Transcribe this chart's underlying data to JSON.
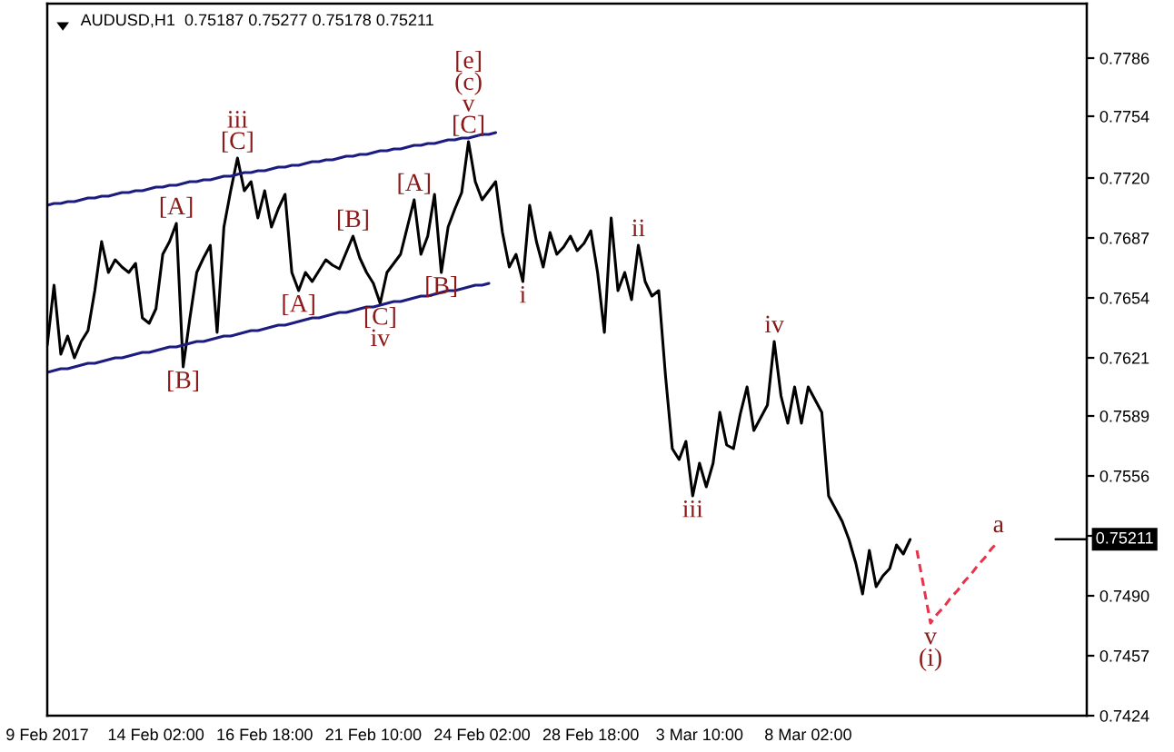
{
  "chart_data": {
    "type": "line",
    "title": "AUDUSD,H1  0.75187 0.75277 0.75178 0.75211",
    "categories": [
      "9 Feb 2017",
      null,
      null,
      null,
      null,
      null,
      null,
      null,
      null,
      null,
      null,
      null,
      null,
      null,
      null,
      null,
      "14 Feb 02:00",
      null,
      null,
      null,
      null,
      null,
      null,
      null,
      null,
      null,
      null,
      null,
      null,
      null,
      null,
      null,
      "16 Feb 18:00",
      null,
      null,
      null,
      null,
      null,
      null,
      null,
      null,
      null,
      null,
      null,
      null,
      null,
      null,
      null,
      "21 Feb 10:00",
      null,
      null,
      null,
      null,
      null,
      null,
      null,
      null,
      null,
      null,
      null,
      null,
      null,
      null,
      null,
      "24 Feb 02:00",
      null,
      null,
      null,
      null,
      null,
      null,
      null,
      null,
      null,
      null,
      null,
      null,
      null,
      null,
      null,
      "28 Feb 18:00",
      null,
      null,
      null,
      null,
      null,
      null,
      null,
      null,
      null,
      null,
      null,
      null,
      null,
      null,
      null,
      "3 Mar 10:00",
      null,
      null,
      null,
      null,
      null,
      null,
      null,
      null,
      null,
      null,
      null,
      null,
      null,
      null,
      null,
      "8 Mar 02:00",
      null,
      null,
      null,
      null,
      null,
      null,
      null,
      null,
      null,
      null,
      null,
      null,
      null,
      null,
      null,
      null,
      null,
      null,
      null,
      null,
      null,
      null,
      null,
      null,
      null,
      null,
      null,
      null,
      null,
      null,
      null,
      null,
      null,
      null,
      null,
      null,
      null,
      null,
      null,
      null,
      null
    ],
    "series": [
      {
        "color": "#000000",
        "values": [
          0.7628,
          0.7661,
          0.7623,
          0.7633,
          0.7621,
          0.763,
          0.7636,
          0.7658,
          0.7685,
          0.7668,
          0.7675,
          0.7671,
          0.7668,
          0.7673,
          0.7643,
          0.764,
          0.7648,
          0.7678,
          0.7685,
          0.7695,
          0.7616,
          0.7643,
          0.7668,
          0.7676,
          0.7683,
          0.7635,
          0.7693,
          0.7713,
          0.7731,
          0.7713,
          0.7718,
          0.7698,
          0.7713,
          0.7693,
          0.7703,
          0.7711,
          0.7668,
          0.7658,
          0.7668,
          0.7663,
          0.7669,
          0.7675,
          0.7672,
          0.767,
          0.7679,
          0.7688,
          0.7676,
          0.7668,
          0.7662,
          0.7651,
          0.7668,
          0.7673,
          0.7678,
          0.7693,
          0.7708,
          0.7678,
          0.7688,
          0.7711,
          0.7668,
          0.7693,
          0.7703,
          0.7712,
          0.774,
          0.7718,
          0.7708,
          0.7713,
          0.7718,
          0.769,
          0.7671,
          0.7678,
          0.7663,
          0.7705,
          0.7685,
          0.7671,
          0.769,
          0.7678,
          0.7682,
          0.7688,
          0.768,
          0.7684,
          0.7691,
          0.7668,
          0.7635,
          0.7698,
          0.7658,
          0.7668,
          0.7653,
          0.7683,
          0.7663,
          0.7655,
          0.7658,
          0.7611,
          0.7571,
          0.7565,
          0.7575,
          0.7545,
          0.7563,
          0.755,
          0.7563,
          0.7591,
          0.7573,
          0.7571,
          0.759,
          0.7605,
          0.7581,
          0.7588,
          0.7595,
          0.763,
          0.76,
          0.7585,
          0.7605,
          0.7585,
          0.7605,
          0.7598,
          0.7591,
          0.7545,
          0.7538,
          0.7531,
          0.7521,
          0.7508,
          0.7491,
          0.7515,
          0.7495,
          0.7501,
          0.7505,
          0.7518,
          0.7513,
          0.7521,
          null,
          null,
          null,
          null,
          null,
          null,
          null,
          null,
          null,
          null,
          null,
          null,
          null,
          null,
          null,
          null,
          null,
          null,
          null,
          null,
          null,
          null,
          null,
          null,
          null,
          null
        ]
      },
      {
        "type": "line",
        "color": "#1c1c80",
        "values": [
          0.7705,
          0.7706,
          0.7706,
          0.7707,
          0.7707,
          0.7708,
          0.7709,
          0.7709,
          0.771,
          0.771,
          0.7711,
          0.7712,
          0.7712,
          0.7713,
          0.7713,
          0.7714,
          0.7715,
          0.7715,
          0.7716,
          0.7716,
          0.7717,
          0.7718,
          0.7718,
          0.7719,
          0.7719,
          0.772,
          0.7721,
          0.7721,
          0.7722,
          0.7723,
          0.7723,
          0.7724,
          0.7724,
          0.7725,
          0.7726,
          0.7726,
          0.7727,
          0.7727,
          0.7728,
          0.7729,
          0.7729,
          0.773,
          0.773,
          0.7731,
          0.7732,
          0.7732,
          0.7733,
          0.7733,
          0.7734,
          0.7735,
          0.7735,
          0.7736,
          0.7736,
          0.7737,
          0.7738,
          0.7738,
          0.7739,
          0.7739,
          0.774,
          0.7741,
          0.7741,
          0.7742,
          0.7742,
          0.7743,
          0.7744,
          0.7744,
          0.7745,
          null,
          null,
          null,
          null,
          null,
          null,
          null,
          null,
          null,
          null,
          null,
          null,
          null,
          null,
          null,
          null,
          null,
          null,
          null,
          null,
          null,
          null,
          null,
          null,
          null,
          null,
          null,
          null,
          null,
          null,
          null,
          null,
          null,
          null,
          null,
          null,
          null,
          null,
          null,
          null,
          null,
          null,
          null,
          null,
          null,
          null,
          null,
          null,
          null,
          null,
          null,
          null,
          null,
          null,
          null,
          null,
          null,
          null,
          null,
          null,
          null,
          null,
          null,
          null,
          null,
          null,
          null,
          null,
          null,
          null,
          null,
          null,
          null,
          null,
          null,
          null,
          null,
          null,
          null,
          null,
          null,
          null,
          null,
          null,
          null,
          null,
          null
        ]
      },
      {
        "type": "line",
        "color": "#1c1c80",
        "values": [
          0.7613,
          0.7614,
          0.7615,
          0.7615,
          0.7616,
          0.7617,
          0.7618,
          0.7618,
          0.7619,
          0.762,
          0.7621,
          0.7621,
          0.7622,
          0.7623,
          0.7624,
          0.7624,
          0.7625,
          0.7626,
          0.7627,
          0.7627,
          0.7628,
          0.7629,
          0.763,
          0.763,
          0.7631,
          0.7632,
          0.7633,
          0.7633,
          0.7634,
          0.7635,
          0.7636,
          0.7636,
          0.7637,
          0.7638,
          0.7639,
          0.7639,
          0.764,
          0.7641,
          0.7642,
          0.7643,
          0.7643,
          0.7644,
          0.7645,
          0.7646,
          0.7646,
          0.7647,
          0.7648,
          0.7649,
          0.7649,
          0.765,
          0.7651,
          0.7652,
          0.7652,
          0.7653,
          0.7654,
          0.7655,
          0.7655,
          0.7656,
          0.7657,
          0.7658,
          0.7658,
          0.7659,
          0.766,
          0.7661,
          0.7661,
          0.7662,
          null,
          null,
          null,
          null,
          null,
          null,
          null,
          null,
          null,
          null,
          null,
          null,
          null,
          null,
          null,
          null,
          null,
          null,
          null,
          null,
          null,
          null,
          null,
          null,
          null,
          null,
          null,
          null,
          null,
          null,
          null,
          null,
          null,
          null,
          null,
          null,
          null,
          null,
          null,
          null,
          null,
          null,
          null,
          null,
          null,
          null,
          null,
          null,
          null,
          null,
          null,
          null,
          null,
          null,
          null,
          null,
          null,
          null,
          null,
          null,
          null,
          null,
          null,
          null,
          null,
          null,
          null,
          null,
          null,
          null,
          null,
          null,
          null,
          null,
          null,
          null,
          null,
          null,
          null,
          null,
          null,
          null,
          null,
          null,
          null,
          null,
          null,
          null
        ]
      },
      {
        "type": "line",
        "color": "#e8334a",
        "line_style": "dashed",
        "values": [
          null,
          null,
          null,
          null,
          null,
          null,
          null,
          null,
          null,
          null,
          null,
          null,
          null,
          null,
          null,
          null,
          null,
          null,
          null,
          null,
          null,
          null,
          null,
          null,
          null,
          null,
          null,
          null,
          null,
          null,
          null,
          null,
          null,
          null,
          null,
          null,
          null,
          null,
          null,
          null,
          null,
          null,
          null,
          null,
          null,
          null,
          null,
          null,
          null,
          null,
          null,
          null,
          null,
          null,
          null,
          null,
          null,
          null,
          null,
          null,
          null,
          null,
          null,
          null,
          null,
          null,
          null,
          null,
          null,
          null,
          null,
          null,
          null,
          null,
          null,
          null,
          null,
          null,
          null,
          null,
          null,
          null,
          null,
          null,
          null,
          null,
          null,
          null,
          null,
          null,
          null,
          null,
          null,
          null,
          null,
          null,
          null,
          null,
          null,
          null,
          null,
          null,
          null,
          null,
          null,
          null,
          null,
          null,
          null,
          null,
          null,
          null,
          null,
          null,
          null,
          null,
          null,
          null,
          null,
          null,
          null,
          null,
          null,
          null,
          null,
          null,
          null,
          null,
          0.7515,
          0.7495,
          0.7475,
          0.748,
          0.7484,
          0.7489,
          0.7493,
          0.7498,
          0.7502,
          0.7507,
          0.7511,
          0.7516,
          0.752,
          null,
          null,
          null,
          null,
          null,
          null,
          null,
          null,
          null,
          null,
          null,
          null,
          null
        ]
      }
    ],
    "ylim": [
      0.7424,
      0.7816
    ],
    "yticks": [
      0.7786,
      0.7754,
      {
        "value": 0.772,
        "label": "0.7720"
      },
      0.7687,
      0.7654,
      0.7621,
      0.7589,
      0.7556,
      {
        "value": 0.7523,
        "label": null
      },
      {
        "value": 0.749,
        "label": "0.7490"
      },
      0.7457,
      0.7424
    ],
    "ref_lines": [
      {
        "axis": "y",
        "value": 0.75211,
        "label": "0.75211",
        "color": "#000000"
      }
    ],
    "annotations": [
      {
        "text": "[A]",
        "y": 0.7695
      },
      {
        "text": "[B]",
        "y": 0.7616
      },
      {
        "text": "[C]",
        "y": 0.7731
      },
      {
        "text": "iii",
        "y": 0.7731
      },
      {
        "text": "[A]",
        "y": 0.7658
      },
      {
        "text": "[B]",
        "y": 0.7688
      },
      {
        "text": "[C]",
        "y": 0.7651
      },
      {
        "text": "iv",
        "y": 0.7651
      },
      {
        "text": "[A]",
        "y": 0.7708
      },
      {
        "text": "[B]",
        "y": 0.7668
      },
      {
        "text": "[C]",
        "y": 0.774
      },
      {
        "text": "v",
        "y": 0.774
      },
      {
        "text": "(c)",
        "y": 0.774
      },
      {
        "text": "[e]",
        "y": 0.774
      },
      {
        "text": "i",
        "y": 0.7663
      },
      {
        "text": "ii",
        "y": 0.7683
      },
      {
        "text": "iii",
        "y": 0.7545
      },
      {
        "text": "iv",
        "y": 0.763
      },
      {
        "text": "v",
        "y": 0.7475
      },
      {
        "text": "(i)",
        "y": 0.7475
      },
      {
        "text": "a",
        "y": 0.752
      }
    ]
  }
}
